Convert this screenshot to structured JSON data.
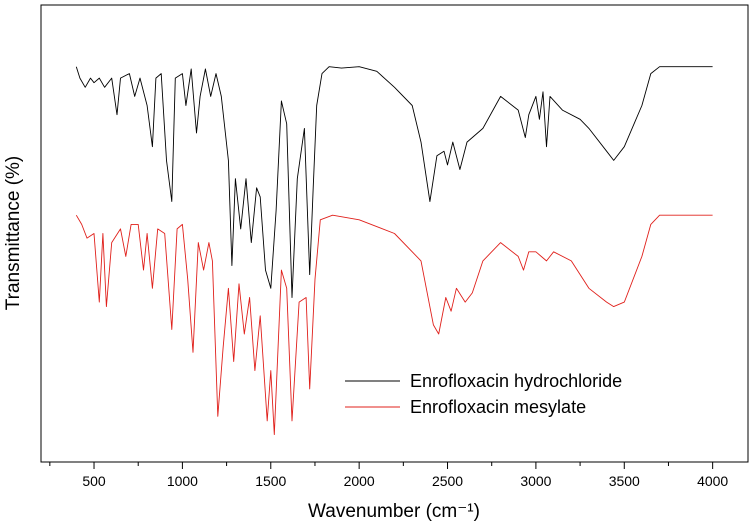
{
  "chart_data": {
    "type": "line",
    "xlabel": "Wavenumber (cm⁻¹)",
    "ylabel": "Transmittance (%)",
    "xlim": [
      200,
      4200
    ],
    "ylim": [
      0,
      100
    ],
    "xticks": [
      500,
      1000,
      1500,
      2000,
      2500,
      3000,
      3500,
      4000
    ],
    "xminorticks": [
      250,
      750,
      1250,
      1750,
      2250,
      2750,
      3250,
      3750
    ],
    "legend": "lower right",
    "series": [
      {
        "name": "Enrofloxacin hydrochloride",
        "color": "#000000",
        "x": [
          400,
          420,
          450,
          480,
          500,
          530,
          560,
          600,
          630,
          650,
          700,
          730,
          760,
          800,
          830,
          850,
          880,
          910,
          940,
          960,
          1000,
          1020,
          1050,
          1080,
          1100,
          1130,
          1160,
          1190,
          1220,
          1260,
          1280,
          1300,
          1330,
          1360,
          1390,
          1420,
          1440,
          1470,
          1500,
          1530,
          1560,
          1590,
          1620,
          1650,
          1690,
          1720,
          1740,
          1760,
          1790,
          1830,
          1900,
          2000,
          2100,
          2200,
          2300,
          2350,
          2400,
          2440,
          2480,
          2500,
          2530,
          2570,
          2610,
          2700,
          2800,
          2900,
          2940,
          2960,
          3000,
          3020,
          3040,
          3060,
          3080,
          3150,
          3250,
          3300,
          3400,
          3440,
          3500,
          3600,
          3650,
          3700,
          4000
        ],
        "values": [
          86.5,
          84,
          82,
          84,
          83,
          84,
          82,
          84,
          76,
          84,
          85,
          80,
          84,
          78,
          69,
          84,
          85,
          66,
          57,
          84,
          85,
          78,
          86,
          72,
          80,
          86,
          80,
          85,
          80,
          66,
          43,
          62,
          51,
          62,
          48,
          60,
          58,
          42,
          38,
          55,
          79,
          74,
          36,
          62,
          73,
          41,
          60,
          78,
          85,
          86.5,
          86.2,
          86.5,
          85.5,
          82,
          78,
          70,
          57,
          67,
          68,
          65,
          70,
          64,
          70,
          73,
          80,
          77,
          71,
          76,
          80,
          75,
          81,
          69,
          80,
          77,
          75,
          73,
          68,
          66,
          69,
          78,
          85,
          86.5,
          86.5
        ]
      },
      {
        "name": "Enrofloxacin mesylate",
        "color": "#e0201b",
        "x": [
          400,
          430,
          460,
          500,
          530,
          550,
          570,
          600,
          650,
          680,
          710,
          750,
          780,
          800,
          830,
          860,
          900,
          940,
          970,
          1000,
          1030,
          1060,
          1090,
          1120,
          1150,
          1170,
          1200,
          1230,
          1260,
          1290,
          1320,
          1350,
          1380,
          1410,
          1440,
          1480,
          1500,
          1520,
          1560,
          1590,
          1620,
          1660,
          1700,
          1720,
          1750,
          1780,
          1850,
          2000,
          2200,
          2350,
          2420,
          2450,
          2490,
          2520,
          2550,
          2600,
          2640,
          2700,
          2800,
          2900,
          2930,
          2960,
          3000,
          3030,
          3060,
          3100,
          3200,
          3300,
          3400,
          3440,
          3500,
          3600,
          3650,
          3700,
          4000
        ],
        "values": [
          54,
          52,
          49,
          50,
          35,
          50,
          34,
          48,
          51,
          45,
          52,
          52,
          42,
          50,
          38,
          51,
          50,
          29,
          51,
          52,
          40,
          24,
          48,
          42,
          48,
          44,
          10,
          25,
          38,
          22,
          39,
          28,
          36,
          20,
          32,
          9,
          20,
          6,
          42,
          38,
          9,
          35,
          36,
          16,
          40,
          53,
          54,
          53,
          50,
          44,
          30,
          28,
          36,
          33,
          38,
          35,
          37,
          44,
          48,
          45,
          42,
          46,
          46,
          45,
          44,
          46,
          44,
          38,
          35,
          34,
          35,
          45,
          52,
          54,
          54
        ]
      }
    ]
  }
}
